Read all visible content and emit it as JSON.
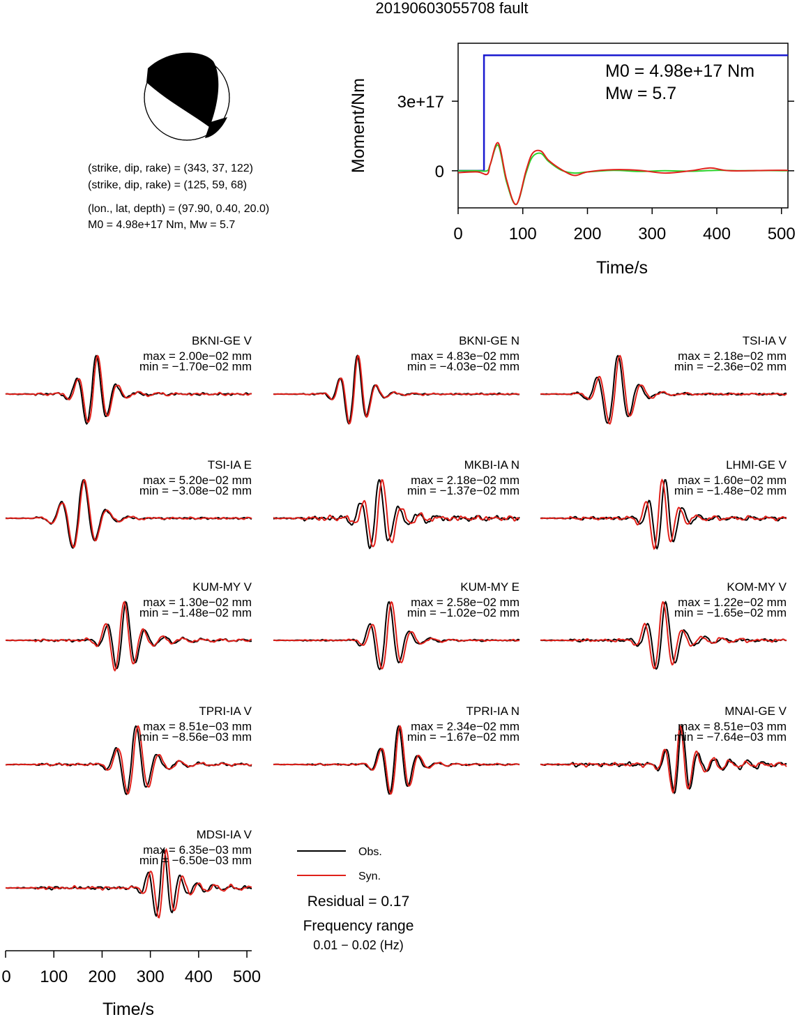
{
  "title": "20190603055708 fault",
  "colors": {
    "obs": "#000000",
    "syn": "#e0201a",
    "moment_rate": "#1a1ad0",
    "moment_green": "#2bd22b",
    "moment_red": "#e0201a"
  },
  "beachball": {
    "line1": "(strike, dip, rake) = (343, 37, 122)",
    "line2": "(strike, dip, rake) = (125, 59, 68)",
    "line3": "(lon., lat, depth) = (97.90, 0.40, 20.0)",
    "line4": "M0 = 4.98e+17 Nm, Mw = 5.7"
  },
  "moment_panel": {
    "ylabel": "Moment/Nm",
    "xlabel": "Time/s",
    "annot_m0": "M0 = 4.98e+17 Nm",
    "annot_mw": "Mw = 5.7",
    "xticks": [
      "0",
      "100",
      "200",
      "300",
      "400",
      "500"
    ],
    "yticks": [
      "0",
      "3e+17"
    ]
  },
  "legend": {
    "obs": "Obs.",
    "syn": "Syn.",
    "residual": "Residual = 0.17",
    "freq_title": "Frequency range",
    "freq_value": "0.01 − 0.02 (Hz)"
  },
  "bottom_axis": {
    "xlabel": "Time/s",
    "ticks": [
      "0",
      "100",
      "200",
      "300",
      "400",
      "500"
    ]
  },
  "chart_data": [
    {
      "type": "line",
      "title": "",
      "xlabel": "Time/s",
      "ylabel": "Moment/Nm",
      "xlim": [
        0,
        510
      ],
      "ylim": [
        -1.6e+17,
        5.5e+17
      ],
      "grid": false,
      "series": [
        {
          "key": "cumulative",
          "x": [
            0,
            40,
            40,
            43,
            510
          ],
          "values": [
            0,
            0,
            4.98e+17,
            4.98e+17,
            4.98e+17
          ]
        },
        {
          "key": "trace_green",
          "x": [
            0,
            30,
            45,
            50,
            62,
            75,
            90,
            105,
            115,
            128,
            140,
            160,
            180,
            200,
            240,
            280,
            320,
            360,
            400,
            440,
            480,
            510
          ],
          "values": [
            0,
            0,
            0,
            3e+16,
            1.1e+17,
            -5e+16,
            -1.45e+17,
            -1e+16,
            6e+16,
            7.5e+16,
            4e+16,
            2000000000000000.0,
            -1e+16,
            -5000000000000000.0,
            2000000000000000.0,
            -3000000000000000.0,
            0,
            -2000000000000000.0,
            2000000000000000.0,
            0,
            1000000000000000.0,
            0
          ]
        },
        {
          "key": "trace_red",
          "x": [
            0,
            30,
            45,
            50,
            62,
            75,
            90,
            105,
            115,
            128,
            140,
            160,
            180,
            200,
            240,
            280,
            320,
            360,
            390,
            420,
            480,
            510
          ],
          "values": [
            -8000000000000000.0,
            -5000000000000000.0,
            -1.5e+16,
            3e+16,
            1.2e+17,
            -4e+16,
            -1.45e+17,
            0,
            7.5e+16,
            8.5e+16,
            4.5e+16,
            5000000000000000.0,
            -2e+16,
            -5000000000000000.0,
            5000000000000000.0,
            2000000000000000.0,
            -1e+16,
            0,
            1.2e+16,
            0,
            2000000000000000.0,
            2000000000000000.0
          ]
        }
      ]
    },
    {
      "type": "line",
      "xlabel": "Time/s",
      "xlim": [
        0,
        510
      ],
      "stations": [
        {
          "name": "BKNI-GE V",
          "max": "max = 2.00e−02 mm",
          "min": "min = −1.70e−02 mm",
          "t0": 178,
          "period": 42,
          "amp": 1.0,
          "decay": 55,
          "noise": 0.06,
          "synShift": 3
        },
        {
          "name": "BKNI-GE N",
          "max": "max = 4.83e−02 mm",
          "min": "min = −4.03e−02 mm",
          "t0": 165,
          "period": 38,
          "amp": 1.0,
          "decay": 45,
          "noise": 0.04,
          "synShift": 2
        },
        {
          "name": "TSI-IA V",
          "max": "max = 2.18e−02 mm",
          "min": "min = −2.36e−02 mm",
          "t0": 150,
          "period": 45,
          "amp": 1.0,
          "decay": 60,
          "noise": 0.05,
          "synShift": 4
        },
        {
          "name": "TSI-IA E",
          "max": "max = 5.20e−02 mm",
          "min": "min = −3.08e−02 mm",
          "t0": 150,
          "period": 48,
          "amp": 1.0,
          "decay": 50,
          "noise": 0.05,
          "synShift": 2
        },
        {
          "name": "MKBI-IA N",
          "max": "max = 2.18e−02 mm",
          "min": "min = −1.37e−02 mm",
          "t0": 210,
          "period": 40,
          "amp": 1.0,
          "decay": 80,
          "noise": 0.12,
          "synShift": 6
        },
        {
          "name": "LHMI-GE V",
          "max": "max = 1.60e−02 mm",
          "min": "min = −1.48e−02 mm",
          "t0": 250,
          "period": 36,
          "amp": 1.0,
          "decay": 70,
          "noise": 0.08,
          "synShift": -6
        },
        {
          "name": "KUM-MY V",
          "max": "max = 1.30e−02 mm",
          "min": "min = −1.48e−02 mm",
          "t0": 240,
          "period": 40,
          "amp": 1.0,
          "decay": 75,
          "noise": 0.06,
          "synShift": -4
        },
        {
          "name": "KUM-MY E",
          "max": "max = 2.58e−02 mm",
          "min": "min = −1.02e−02 mm",
          "t0": 230,
          "period": 42,
          "amp": 1.0,
          "decay": 55,
          "noise": 0.04,
          "synShift": 5
        },
        {
          "name": "KOM-MY V",
          "max": "max = 1.22e−02 mm",
          "min": "min = −1.65e−02 mm",
          "t0": 250,
          "period": 40,
          "amp": 1.0,
          "decay": 75,
          "noise": 0.07,
          "synShift": -5
        },
        {
          "name": "TPRI-IA V",
          "max": "max = 8.51e−03 mm",
          "min": "min = −8.56e−03 mm",
          "t0": 260,
          "period": 44,
          "amp": 1.0,
          "decay": 70,
          "noise": 0.06,
          "synShift": 4
        },
        {
          "name": "TPRI-IA N",
          "max": "max = 2.34e−02 mm",
          "min": "min = −1.67e−02 mm",
          "t0": 250,
          "period": 40,
          "amp": 1.0,
          "decay": 45,
          "noise": 0.04,
          "synShift": 3
        },
        {
          "name": "MNAI-GE V",
          "max": "max = 8.51e−03 mm",
          "min": "min = −7.64e−03 mm",
          "t0": 285,
          "period": 34,
          "amp": 1.0,
          "decay": 110,
          "noise": 0.1,
          "synShift": -3
        },
        {
          "name": "MDSI-IA V",
          "max": "max = 6.35e−03 mm",
          "min": "min = −6.50e−03 mm",
          "t0": 320,
          "period": 34,
          "amp": 1.0,
          "decay": 90,
          "noise": 0.08,
          "synShift": 5
        }
      ]
    }
  ]
}
